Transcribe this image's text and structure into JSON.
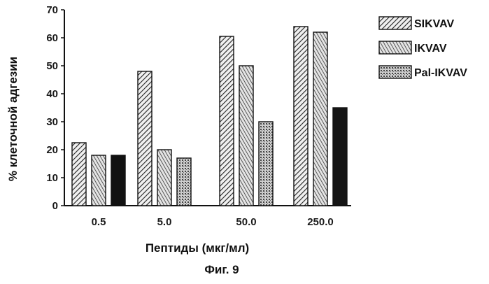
{
  "chart_data": {
    "type": "bar",
    "title": "",
    "xlabel": "Пептиды (мкг/мл)",
    "ylabel": "% клеточной адгезии",
    "ylim": [
      0,
      70
    ],
    "yticks": [
      "0",
      "10",
      "20",
      "30",
      "40",
      "50",
      "60",
      "70"
    ],
    "categories": [
      "0.5",
      "5.0",
      "50.0",
      "250.0"
    ],
    "series": [
      {
        "name": "SIKVAV",
        "values": [
          22.5,
          48,
          60.5,
          64
        ]
      },
      {
        "name": "IKVAV",
        "values": [
          18,
          20,
          50,
          62
        ]
      },
      {
        "name": "Pal-IKVAV",
        "values": [
          18,
          17,
          30,
          35
        ]
      }
    ],
    "legend_position": "top-right",
    "grid": false
  },
  "caption": "Фиг. 9"
}
